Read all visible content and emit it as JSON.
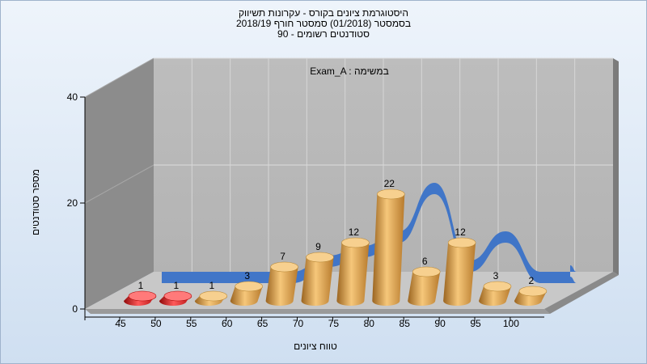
{
  "header": {
    "line1": "היסטוגרמת ציונים בקורס - עקרונות תשיווק",
    "line2": "בסמסטר  (01/2018)  סמסטר חורף 2018/19",
    "line3": "סטודנטים רשומים - 90"
  },
  "chart_data": {
    "type": "bar",
    "annotation": "Exam_A : במשימה",
    "xlabel": "טווח ציונים",
    "ylabel": "מספר סטודנטים",
    "categories": [
      "45",
      "50",
      "55",
      "60",
      "65",
      "70",
      "75",
      "80",
      "85",
      "90",
      "95",
      "100"
    ],
    "values": [
      1,
      1,
      1,
      3,
      7,
      9,
      12,
      22,
      6,
      12,
      3,
      2
    ],
    "bar_colors": [
      "#d41616",
      "#d41616",
      "#e0a24a",
      "#e0a24a",
      "#e0a24a",
      "#e0a24a",
      "#e0a24a",
      "#e0a24a",
      "#e0a24a",
      "#e0a24a",
      "#e0a24a",
      "#e0a24a"
    ],
    "yticks": [
      0,
      20,
      40
    ],
    "ylim": [
      0,
      40
    ],
    "curve_color": "#3a72c8",
    "grid": true
  }
}
